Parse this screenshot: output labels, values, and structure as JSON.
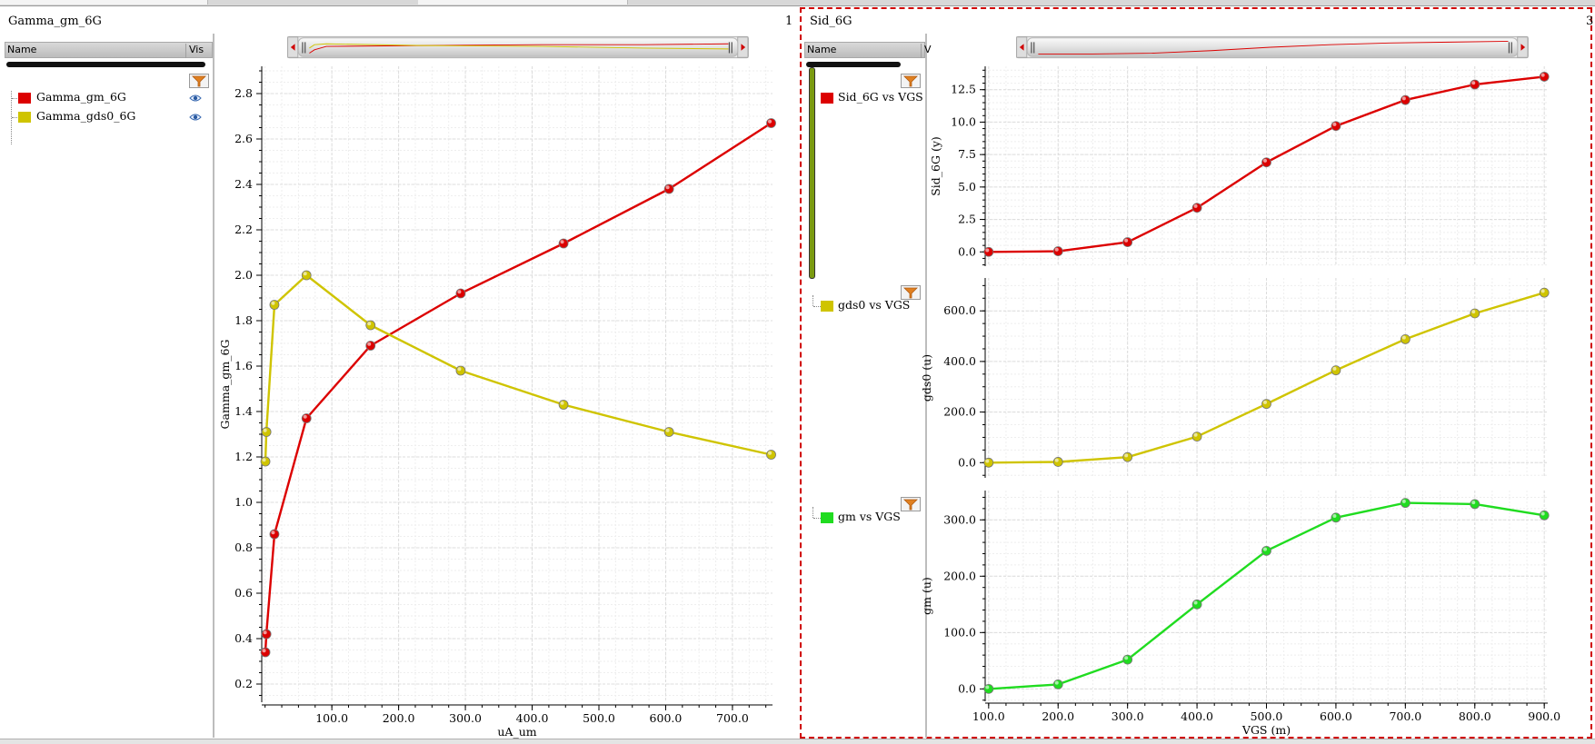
{
  "colors": {
    "red": "#dc0000",
    "yellow": "#cfc400",
    "green": "#20dc20",
    "grid": "#dcdcdc"
  },
  "panel1": {
    "title": "Gamma_gm_6G",
    "number": "1",
    "legend": {
      "col_name": "Name",
      "col_vis": "Vis",
      "items": [
        {
          "label": "Gamma_gm_6G",
          "color": "#dc0000",
          "icon": "eye-icon"
        },
        {
          "label": "Gamma_gds0_6G",
          "color": "#cfc400",
          "icon": "eye-icon"
        }
      ]
    },
    "chart_data": {
      "type": "line",
      "xlabel": "uA_um",
      "ylabel": "Gamma_gm_6G",
      "xlim": [
        -5,
        760
      ],
      "ylim": [
        0.12,
        2.92
      ],
      "xticks": [
        100,
        200,
        300,
        400,
        500,
        600,
        700
      ],
      "xtick_labels": [
        "100.0",
        "200.0",
        "300.0",
        "400.0",
        "500.0",
        "600.0",
        "700.0"
      ],
      "yticks": [
        0.2,
        0.4,
        0.6,
        0.8,
        1.0,
        1.2,
        1.4,
        1.6,
        1.8,
        2.0,
        2.2,
        2.4,
        2.6,
        2.8
      ],
      "ytick_labels": [
        "0.2",
        "0.4",
        "0.6",
        "0.8",
        "1.0",
        "1.2",
        "1.4",
        "1.6",
        "1.8",
        "2.0",
        "2.2",
        "2.4",
        "2.6",
        "2.8"
      ],
      "grid": true,
      "series": [
        {
          "name": "Gamma_gm_6G",
          "color": "#dc0000",
          "x": [
            0.5,
            2,
            14,
            62,
            158,
            293,
            447,
            605,
            758
          ],
          "y": [
            0.34,
            0.42,
            0.86,
            1.37,
            1.69,
            1.92,
            2.14,
            2.38,
            2.67
          ]
        },
        {
          "name": "Gamma_gds0_6G",
          "color": "#cfc400",
          "x": [
            0.5,
            2,
            14,
            62,
            158,
            293,
            447,
            605,
            758
          ],
          "y": [
            1.18,
            1.31,
            1.87,
            2.0,
            1.78,
            1.58,
            1.43,
            1.31,
            1.21
          ]
        }
      ]
    }
  },
  "panel2": {
    "title": "Sid_6G",
    "number": "3",
    "legend": {
      "col_name": "Name",
      "col_vis": "V",
      "items": [
        {
          "label": "Sid_6G vs VGS",
          "color": "#dc0000"
        },
        {
          "label": "gds0 vs VGS",
          "color": "#cfc400"
        },
        {
          "label": "gm vs VGS",
          "color": "#20dc20"
        }
      ]
    },
    "chart_data": [
      {
        "type": "line",
        "ylabel": "Sid_6G (y)",
        "xlim": [
          95,
          905
        ],
        "ylim": [
          -1.1,
          14.3
        ],
        "yticks": [
          0,
          2.5,
          5.0,
          7.5,
          10.0,
          12.5
        ],
        "ytick_labels": [
          "0.0",
          "2.5",
          "5.0",
          "7.5",
          "10.0",
          "12.5"
        ],
        "grid": true,
        "series": [
          {
            "name": "Sid_6G vs VGS",
            "color": "#dc0000",
            "x": [
              100,
              200,
              300,
              400,
              500,
              600,
              700,
              800,
              900
            ],
            "y": [
              0.0,
              0.05,
              0.75,
              3.4,
              6.9,
              9.7,
              11.7,
              12.9,
              13.5
            ]
          }
        ]
      },
      {
        "type": "line",
        "ylabel": "gds0 (u)",
        "xlim": [
          95,
          905
        ],
        "ylim": [
          -60,
          730
        ],
        "yticks": [
          0,
          200,
          400,
          600
        ],
        "ytick_labels": [
          "0.0",
          "200.0",
          "400.0",
          "600.0"
        ],
        "grid": true,
        "series": [
          {
            "name": "gds0 vs VGS",
            "color": "#cfc400",
            "x": [
              100,
              200,
              300,
              400,
              500,
              600,
              700,
              800,
              900
            ],
            "y": [
              0,
              3,
              22,
              103,
              232,
              365,
              488,
              590,
              672
            ]
          }
        ]
      },
      {
        "type": "line",
        "xlabel": "VGS (m)",
        "ylabel": "gm (u)",
        "xlim": [
          95,
          905
        ],
        "ylim": [
          -22,
          352
        ],
        "xticks": [
          100,
          200,
          300,
          400,
          500,
          600,
          700,
          800,
          900
        ],
        "xtick_labels": [
          "100.0",
          "200.0",
          "300.0",
          "400.0",
          "500.0",
          "600.0",
          "700.0",
          "800.0",
          "900.0"
        ],
        "yticks": [
          0,
          100,
          200,
          300
        ],
        "ytick_labels": [
          "0.0",
          "100.0",
          "200.0",
          "300.0"
        ],
        "grid": true,
        "series": [
          {
            "name": "gm vs VGS",
            "color": "#20dc20",
            "x": [
              100,
              200,
              300,
              400,
              500,
              600,
              700,
              800,
              900
            ],
            "y": [
              0,
              8,
              52,
              150,
              245,
              304,
              330,
              328,
              308
            ]
          }
        ]
      }
    ]
  }
}
